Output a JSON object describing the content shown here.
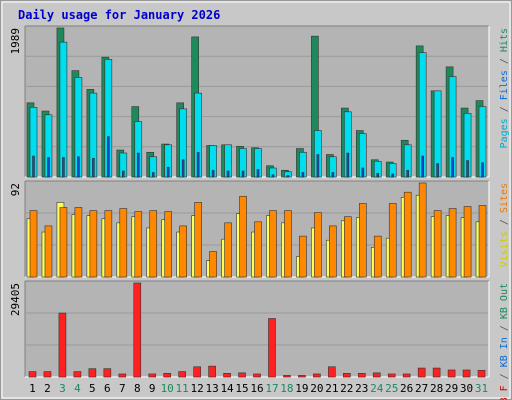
{
  "chart_data": {
    "type": "bar",
    "title": "Daily usage for January 2026",
    "categories": [
      "1",
      "2",
      "3",
      "4",
      "5",
      "6",
      "7",
      "8",
      "9",
      "10",
      "11",
      "12",
      "13",
      "14",
      "15",
      "16",
      "17",
      "18",
      "19",
      "20",
      "21",
      "22",
      "23",
      "24",
      "25",
      "26",
      "27",
      "28",
      "29",
      "30",
      "31"
    ],
    "weekend_days": [
      3,
      4,
      10,
      11,
      17,
      18,
      24,
      25,
      31
    ],
    "panels": [
      {
        "id": "hits",
        "ymax_label": "1989",
        "ymax": 1989,
        "side_label": [
          {
            "text": "Pages",
            "color": "#00aacc"
          },
          {
            "text": " / ",
            "color": "#555555"
          },
          {
            "text": "Files",
            "color": "#0a6ad6"
          },
          {
            "text": " / ",
            "color": "#555555"
          },
          {
            "text": "Hits",
            "color": "#1e8a5c"
          }
        ],
        "series": [
          {
            "name": "Hits",
            "color": "#1e8a5c",
            "values": [
              990,
              880,
              1989,
              1420,
              1170,
              1600,
              360,
              940,
              330,
              440,
              990,
              1870,
              420,
              430,
              410,
              390,
              150,
              90,
              380,
              1880,
              300,
              920,
              620,
              230,
              200,
              490,
              1750,
              1150,
              1470,
              920,
              1020
            ]
          },
          {
            "name": "Files",
            "color": "#00ddee",
            "values": [
              930,
              830,
              1800,
              1330,
              1120,
              1570,
              320,
              740,
              270,
              430,
              910,
              1120,
              420,
              430,
              380,
              380,
              120,
              70,
              330,
              620,
              270,
              870,
              580,
              210,
              180,
              430,
              1660,
              1150,
              1340,
              850,
              940
            ]
          },
          {
            "name": "Pages",
            "color": "#1848c8",
            "values": [
              280,
              260,
              260,
              270,
              250,
              540,
              80,
              320,
              60,
              130,
              230,
              330,
              90,
              80,
              80,
              100,
              30,
              20,
              60,
              300,
              60,
              320,
              120,
              50,
              40,
              90,
              280,
              180,
              260,
              220,
              190
            ]
          }
        ]
      },
      {
        "id": "visits",
        "ymax_label": "92",
        "ymax": 92,
        "side_label": [
          {
            "text": "Visits",
            "color": "#cccc00"
          },
          {
            "text": " / ",
            "color": "#555555"
          },
          {
            "text": "Sites",
            "color": "#ee7700"
          }
        ],
        "series": [
          {
            "name": "Visits",
            "color": "#ffff55",
            "values": [
              57,
              44,
              73,
              61,
              60,
              57,
              53,
              59,
              48,
              56,
              44,
              60,
              16,
              37,
              62,
              44,
              60,
              53,
              20,
              48,
              36,
              55,
              58,
              29,
              38,
              78,
              80,
              59,
              60,
              58,
              54
            ]
          },
          {
            "name": "Sites",
            "color": "#ff8800",
            "values": [
              65,
              50,
              68,
              68,
              65,
              65,
              67,
              64,
              65,
              64,
              50,
              73,
              25,
              53,
              79,
              54,
              65,
              65,
              40,
              63,
              50,
              59,
              72,
              40,
              72,
              83,
              92,
              65,
              67,
              69,
              70
            ]
          }
        ]
      },
      {
        "id": "kbytes",
        "ymax_label": "29405",
        "ymax": 29405,
        "side_label": [
          {
            "text": "KB F",
            "color": "#cc0000"
          },
          {
            "text": " / ",
            "color": "#555555"
          },
          {
            "text": "KB In",
            "color": "#0a6ad6"
          },
          {
            "text": " / ",
            "color": "#555555"
          },
          {
            "text": "KB Out",
            "color": "#1e8a5c"
          }
        ],
        "series": [
          {
            "name": "KB F",
            "color": "#ff2020",
            "values": [
              1700,
              1700,
              20000,
              1700,
              2600,
              2600,
              950,
              29405,
              950,
              1150,
              1700,
              3200,
              3400,
              1150,
              1300,
              950,
              18300,
              500,
              500,
              950,
              3200,
              1150,
              1150,
              1300,
              950,
              950,
              2800,
              2800,
              2200,
              2200,
              2100
            ]
          }
        ]
      }
    ]
  }
}
